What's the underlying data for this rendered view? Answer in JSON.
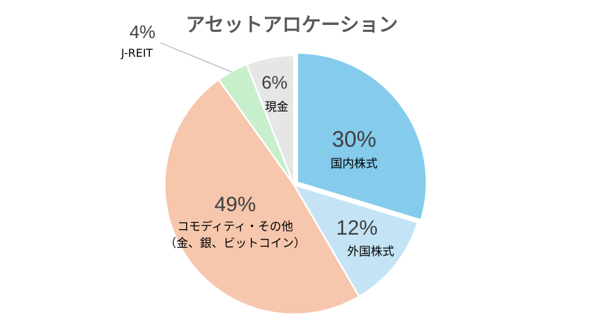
{
  "chart_data": {
    "type": "pie",
    "title": "アセットアロケーション",
    "slices": [
      {
        "name": "国内株式",
        "value": 30,
        "value_label": "30%",
        "color": "#84cbec"
      },
      {
        "name": "外国株式",
        "value": 12,
        "value_label": "12%",
        "color": "#c4e4f5"
      },
      {
        "name": "コモディティ・その他（金、銀、ビットコイン）",
        "label_lines": [
          "コモディティ・その他",
          "（金、銀、ビットコイン）"
        ],
        "value": 49,
        "value_label": "49%",
        "color": "#f6c6ad"
      },
      {
        "name": "J-REIT",
        "value": 4,
        "value_label": "4%",
        "color": "#c7efcc"
      },
      {
        "name": "現金",
        "value": 6,
        "value_label": "6%",
        "color": "#e7e6e6"
      }
    ],
    "start_angle": "12 o'clock",
    "direction": "clockwise",
    "legend": "none",
    "colors": {
      "title": "#595959",
      "percent": "#404040",
      "label": "#000000",
      "slice_border": "#ffffff",
      "leader_line": "#a6a6a6"
    }
  }
}
